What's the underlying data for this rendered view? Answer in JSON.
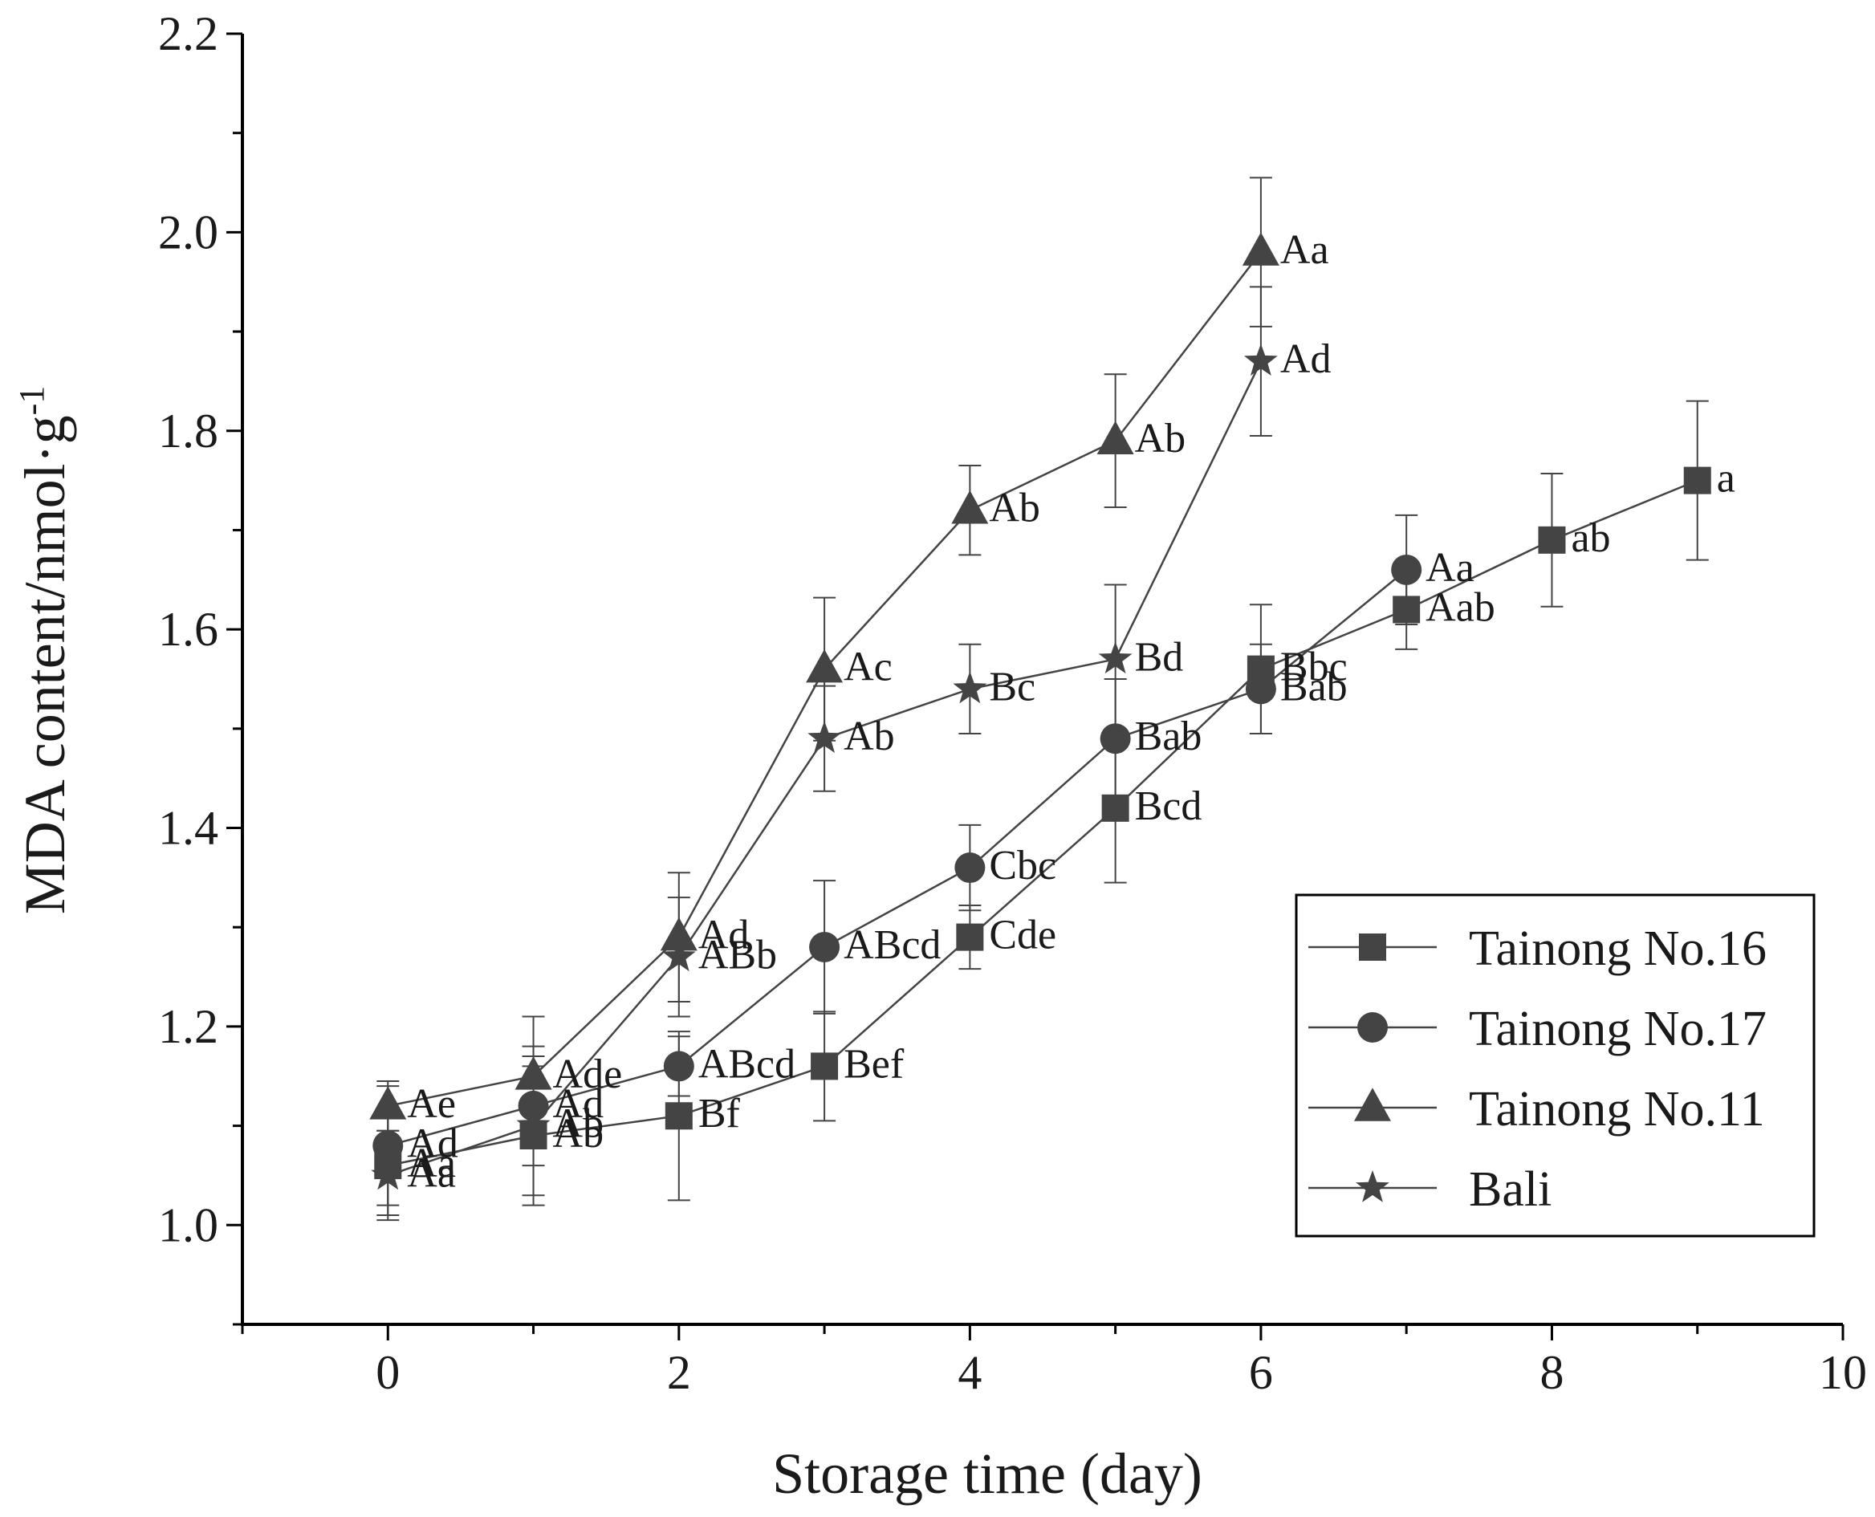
{
  "chart_data": {
    "type": "line",
    "xlabel": "Storage time (day)",
    "ylabel_main": "MDA content/nmol·g",
    "ylabel_sup": "-1",
    "xlim": [
      -1,
      10
    ],
    "ylim": [
      0.9,
      2.2
    ],
    "xticks": [
      0,
      2,
      4,
      6,
      8,
      10
    ],
    "xtick_labels": [
      "0",
      "2",
      "4",
      "6",
      "8",
      "10"
    ],
    "yticks": [
      1.0,
      1.2,
      1.4,
      1.6,
      1.8,
      2.0,
      2.2
    ],
    "ytick_labels": [
      "1.0",
      "1.2",
      "1.4",
      "1.6",
      "1.8",
      "2.0",
      "2.2"
    ],
    "legend_position": "bottom-right",
    "series": [
      {
        "name": "Tainong No.16",
        "marker": "square",
        "x": [
          0,
          1,
          2,
          3,
          4,
          5,
          6,
          7,
          8,
          9
        ],
        "y": [
          1.06,
          1.09,
          1.11,
          1.16,
          1.29,
          1.42,
          1.56,
          1.62,
          1.69,
          1.75
        ],
        "err": [
          0.05,
          0.07,
          0.085,
          0.055,
          0.032,
          0.075,
          0.065,
          0.04,
          0.067,
          0.08
        ],
        "labels": [
          "Aa",
          "Ab",
          "Bf",
          "Bef",
          "Cde",
          "Bcd",
          "Bbc",
          "Aab",
          "ab",
          "a"
        ]
      },
      {
        "name": "Tainong No.17",
        "marker": "circle",
        "x": [
          0,
          1,
          2,
          3,
          4,
          5,
          6,
          7
        ],
        "y": [
          1.08,
          1.12,
          1.16,
          1.28,
          1.36,
          1.49,
          1.54,
          1.66
        ],
        "err": [
          0.06,
          0.06,
          0.03,
          0.067,
          0.043,
          0.06,
          0.045,
          0.055
        ],
        "labels": [
          "Ad",
          "Ad",
          "ABcd",
          "ABcd",
          "Cbc",
          "Bab",
          "Bab",
          "Aa"
        ]
      },
      {
        "name": "Tainong No.11",
        "marker": "triangle",
        "x": [
          0,
          1,
          2,
          3,
          4,
          5,
          6
        ],
        "y": [
          1.12,
          1.15,
          1.29,
          1.56,
          1.72,
          1.79,
          1.98
        ],
        "err": [
          0.025,
          0.06,
          0.065,
          0.072,
          0.045,
          0.067,
          0.075
        ],
        "labels": [
          "Ae",
          "Ade",
          "Ad",
          "Ac",
          "Ab",
          "Ab",
          "Aa"
        ]
      },
      {
        "name": "Bali",
        "marker": "star",
        "x": [
          0,
          1,
          2,
          3,
          4,
          5,
          6
        ],
        "y": [
          1.05,
          1.1,
          1.27,
          1.49,
          1.54,
          1.57,
          1.87
        ],
        "err": [
          0.045,
          0.07,
          0.06,
          0.053,
          0.045,
          0.075,
          0.075
        ],
        "labels": [
          "Aa",
          "Ab",
          "ABb",
          "Ab",
          "Bc",
          "Bd",
          "Ad"
        ]
      }
    ]
  }
}
